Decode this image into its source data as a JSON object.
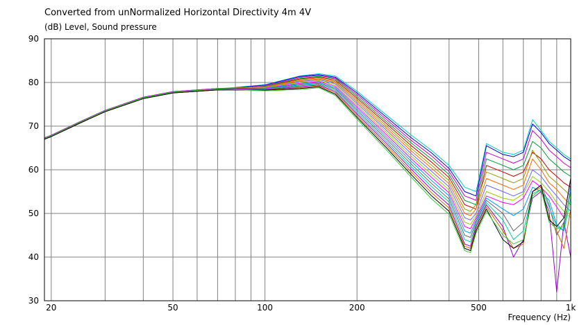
{
  "chart_data": {
    "type": "line",
    "title": "Converted from unNormalized Horizontal Directivity 4m 4V",
    "ylabel": "(dB)  Level, Sound pressure",
    "xlabel": "Frequency  (Hz)",
    "xscale": "log",
    "xlim": [
      19,
      1000
    ],
    "ylim": [
      30,
      90
    ],
    "grid": true,
    "xticks": [
      {
        "value": 20,
        "label": "20"
      },
      {
        "value": 50,
        "label": "50"
      },
      {
        "value": 100,
        "label": "100"
      },
      {
        "value": 200,
        "label": "200"
      },
      {
        "value": 500,
        "label": "500"
      },
      {
        "value": 1000,
        "label": "1k"
      }
    ],
    "yticks": [
      30,
      40,
      50,
      60,
      70,
      80,
      90
    ],
    "x": [
      19,
      20,
      25,
      30,
      40,
      50,
      70,
      100,
      130,
      150,
      170,
      200,
      250,
      300,
      350,
      400,
      450,
      470,
      490,
      530,
      600,
      650,
      700,
      750,
      800,
      850,
      900,
      950,
      1000
    ],
    "series": [
      {
        "color": "#00cccc",
        "values": [
          67.2,
          67.8,
          71.0,
          73.5,
          76.5,
          77.8,
          78.5,
          79.5,
          81.5,
          82.0,
          81.5,
          78.0,
          72.5,
          68.0,
          64.5,
          61.0,
          56.0,
          55.5,
          55.0,
          66.0,
          64.0,
          63.5,
          64.5,
          71.5,
          69.0,
          66.5,
          65.0,
          63.5,
          62.5
        ]
      },
      {
        "color": "#0000cc",
        "values": [
          67.1,
          67.7,
          70.9,
          73.4,
          76.4,
          77.7,
          78.4,
          79.4,
          81.4,
          81.8,
          81.2,
          77.6,
          72.0,
          67.4,
          63.9,
          60.3,
          55.0,
          54.5,
          54.0,
          65.5,
          63.5,
          63.0,
          64.0,
          70.5,
          68.5,
          66.0,
          64.5,
          63.0,
          62.0
        ]
      },
      {
        "color": "#cc00cc",
        "values": [
          67.0,
          67.6,
          70.8,
          73.3,
          76.3,
          77.6,
          78.3,
          79.2,
          81.2,
          81.6,
          81.0,
          77.2,
          71.5,
          66.8,
          63.2,
          59.6,
          54.0,
          53.5,
          53.0,
          64.0,
          62.5,
          61.5,
          62.5,
          69.0,
          67.0,
          64.5,
          63.0,
          61.5,
          60.5
        ]
      },
      {
        "color": "#009933",
        "values": [
          67.1,
          67.7,
          70.9,
          73.4,
          76.4,
          77.7,
          78.4,
          79.1,
          81.0,
          81.4,
          80.8,
          76.8,
          71.0,
          66.2,
          62.5,
          58.9,
          53.0,
          52.5,
          52.0,
          62.5,
          61.0,
          60.0,
          61.0,
          66.5,
          65.0,
          62.5,
          61.0,
          59.5,
          58.5
        ]
      },
      {
        "color": "#cc0000",
        "values": [
          67.2,
          67.8,
          71.0,
          73.5,
          76.5,
          77.8,
          78.5,
          79.0,
          80.8,
          81.2,
          80.5,
          76.4,
          70.5,
          65.6,
          61.8,
          58.2,
          52.0,
          51.5,
          51.0,
          61.0,
          59.5,
          58.5,
          59.5,
          64.0,
          62.5,
          60.0,
          58.5,
          57.0,
          56.0
        ]
      },
      {
        "color": "#999900",
        "values": [
          67.3,
          67.9,
          71.1,
          73.6,
          76.6,
          77.9,
          78.6,
          79.0,
          80.6,
          81.0,
          80.2,
          76.0,
          70.0,
          65.0,
          61.1,
          57.5,
          51.0,
          50.5,
          52.0,
          59.5,
          58.0,
          57.0,
          58.0,
          64.5,
          61.5,
          58.5,
          57.0,
          55.5,
          54.0
        ]
      },
      {
        "color": "#ff6600",
        "values": [
          67.1,
          67.7,
          70.9,
          73.4,
          76.4,
          77.7,
          78.4,
          78.9,
          80.4,
          80.8,
          80.0,
          75.6,
          69.5,
          64.4,
          60.4,
          56.8,
          50.0,
          49.5,
          51.0,
          58.0,
          56.5,
          55.5,
          56.5,
          62.5,
          60.0,
          57.0,
          55.5,
          53.5,
          52.0
        ]
      },
      {
        "color": "#6666ff",
        "values": [
          67.0,
          67.6,
          70.8,
          73.3,
          76.3,
          77.6,
          78.3,
          78.8,
          80.2,
          80.6,
          79.7,
          75.2,
          69.0,
          63.8,
          59.7,
          56.1,
          49.0,
          48.5,
          50.0,
          56.5,
          55.0,
          54.0,
          55.0,
          60.0,
          58.5,
          56.0,
          54.0,
          52.0,
          50.5
        ]
      },
      {
        "color": "#99cc00",
        "values": [
          67.2,
          67.8,
          71.0,
          73.5,
          76.5,
          77.8,
          78.5,
          78.8,
          80.0,
          80.4,
          79.4,
          74.8,
          68.5,
          63.2,
          59.0,
          55.4,
          48.0,
          47.5,
          49.5,
          55.0,
          53.5,
          53.0,
          54.5,
          58.5,
          57.0,
          55.0,
          52.5,
          50.5,
          49.0
        ]
      },
      {
        "color": "#ff00ff",
        "values": [
          67.3,
          67.9,
          71.1,
          73.6,
          76.6,
          77.9,
          78.6,
          78.7,
          79.8,
          80.2,
          79.1,
          74.4,
          68.0,
          62.6,
          58.3,
          54.7,
          47.0,
          46.5,
          49.0,
          54.0,
          52.5,
          52.0,
          53.5,
          57.5,
          56.0,
          54.0,
          51.5,
          49.0,
          58.0
        ]
      },
      {
        "color": "#0099ff",
        "values": [
          67.1,
          67.7,
          70.9,
          73.4,
          76.4,
          77.7,
          78.4,
          78.6,
          79.6,
          80.0,
          78.8,
          74.0,
          67.5,
          62.0,
          57.6,
          54.0,
          46.0,
          45.5,
          48.5,
          53.5,
          51.0,
          49.5,
          51.0,
          56.0,
          55.0,
          53.0,
          47.5,
          46.0,
          56.5
        ]
      },
      {
        "color": "#666666",
        "values": [
          67.0,
          67.6,
          70.8,
          73.3,
          76.3,
          77.6,
          78.3,
          78.5,
          79.4,
          79.8,
          78.5,
          73.6,
          67.0,
          61.4,
          56.9,
          53.3,
          45.0,
          44.5,
          48.0,
          53.0,
          50.0,
          46.0,
          48.0,
          55.0,
          56.5,
          52.0,
          45.0,
          48.0,
          55.0
        ]
      },
      {
        "color": "#00cc99",
        "values": [
          67.2,
          67.8,
          71.0,
          73.5,
          76.5,
          77.8,
          78.5,
          78.5,
          79.2,
          79.6,
          78.2,
          73.2,
          66.5,
          60.8,
          56.2,
          52.6,
          44.0,
          43.5,
          47.5,
          52.5,
          48.5,
          44.0,
          46.0,
          54.5,
          55.5,
          51.5,
          47.0,
          46.0,
          53.5
        ]
      },
      {
        "color": "#9900cc",
        "values": [
          67.3,
          67.9,
          71.1,
          73.6,
          76.6,
          77.9,
          78.6,
          78.4,
          79.0,
          79.4,
          77.9,
          72.8,
          66.0,
          60.2,
          55.5,
          51.9,
          43.0,
          42.5,
          47.0,
          52.0,
          47.0,
          40.0,
          44.0,
          53.5,
          55.0,
          50.5,
          32.0,
          48.0,
          40.0
        ]
      },
      {
        "color": "#cc6600",
        "values": [
          67.1,
          67.7,
          70.9,
          73.4,
          76.4,
          77.7,
          78.4,
          78.3,
          78.8,
          79.2,
          77.6,
          72.4,
          65.5,
          59.6,
          54.8,
          51.2,
          42.5,
          42.0,
          46.5,
          51.5,
          46.0,
          42.0,
          43.0,
          55.0,
          56.0,
          49.0,
          46.0,
          42.0,
          51.0
        ]
      },
      {
        "color": "#000000",
        "values": [
          67.0,
          67.6,
          70.8,
          73.3,
          76.3,
          77.6,
          78.3,
          78.2,
          78.6,
          79.0,
          77.3,
          72.0,
          65.0,
          59.0,
          54.1,
          50.5,
          42.0,
          41.5,
          46.0,
          51.0,
          44.0,
          42.0,
          43.5,
          55.0,
          56.5,
          48.5,
          47.0,
          49.0,
          58.0
        ]
      },
      {
        "color": "#33cc33",
        "values": [
          67.2,
          67.8,
          71.0,
          73.5,
          76.5,
          77.8,
          78.5,
          78.1,
          78.4,
          78.8,
          77.0,
          71.6,
          64.5,
          58.4,
          53.4,
          49.8,
          41.5,
          41.0,
          45.5,
          50.5,
          45.0,
          43.0,
          44.0,
          54.0,
          55.5,
          48.0,
          46.5,
          47.0,
          55.0
        ]
      }
    ]
  }
}
